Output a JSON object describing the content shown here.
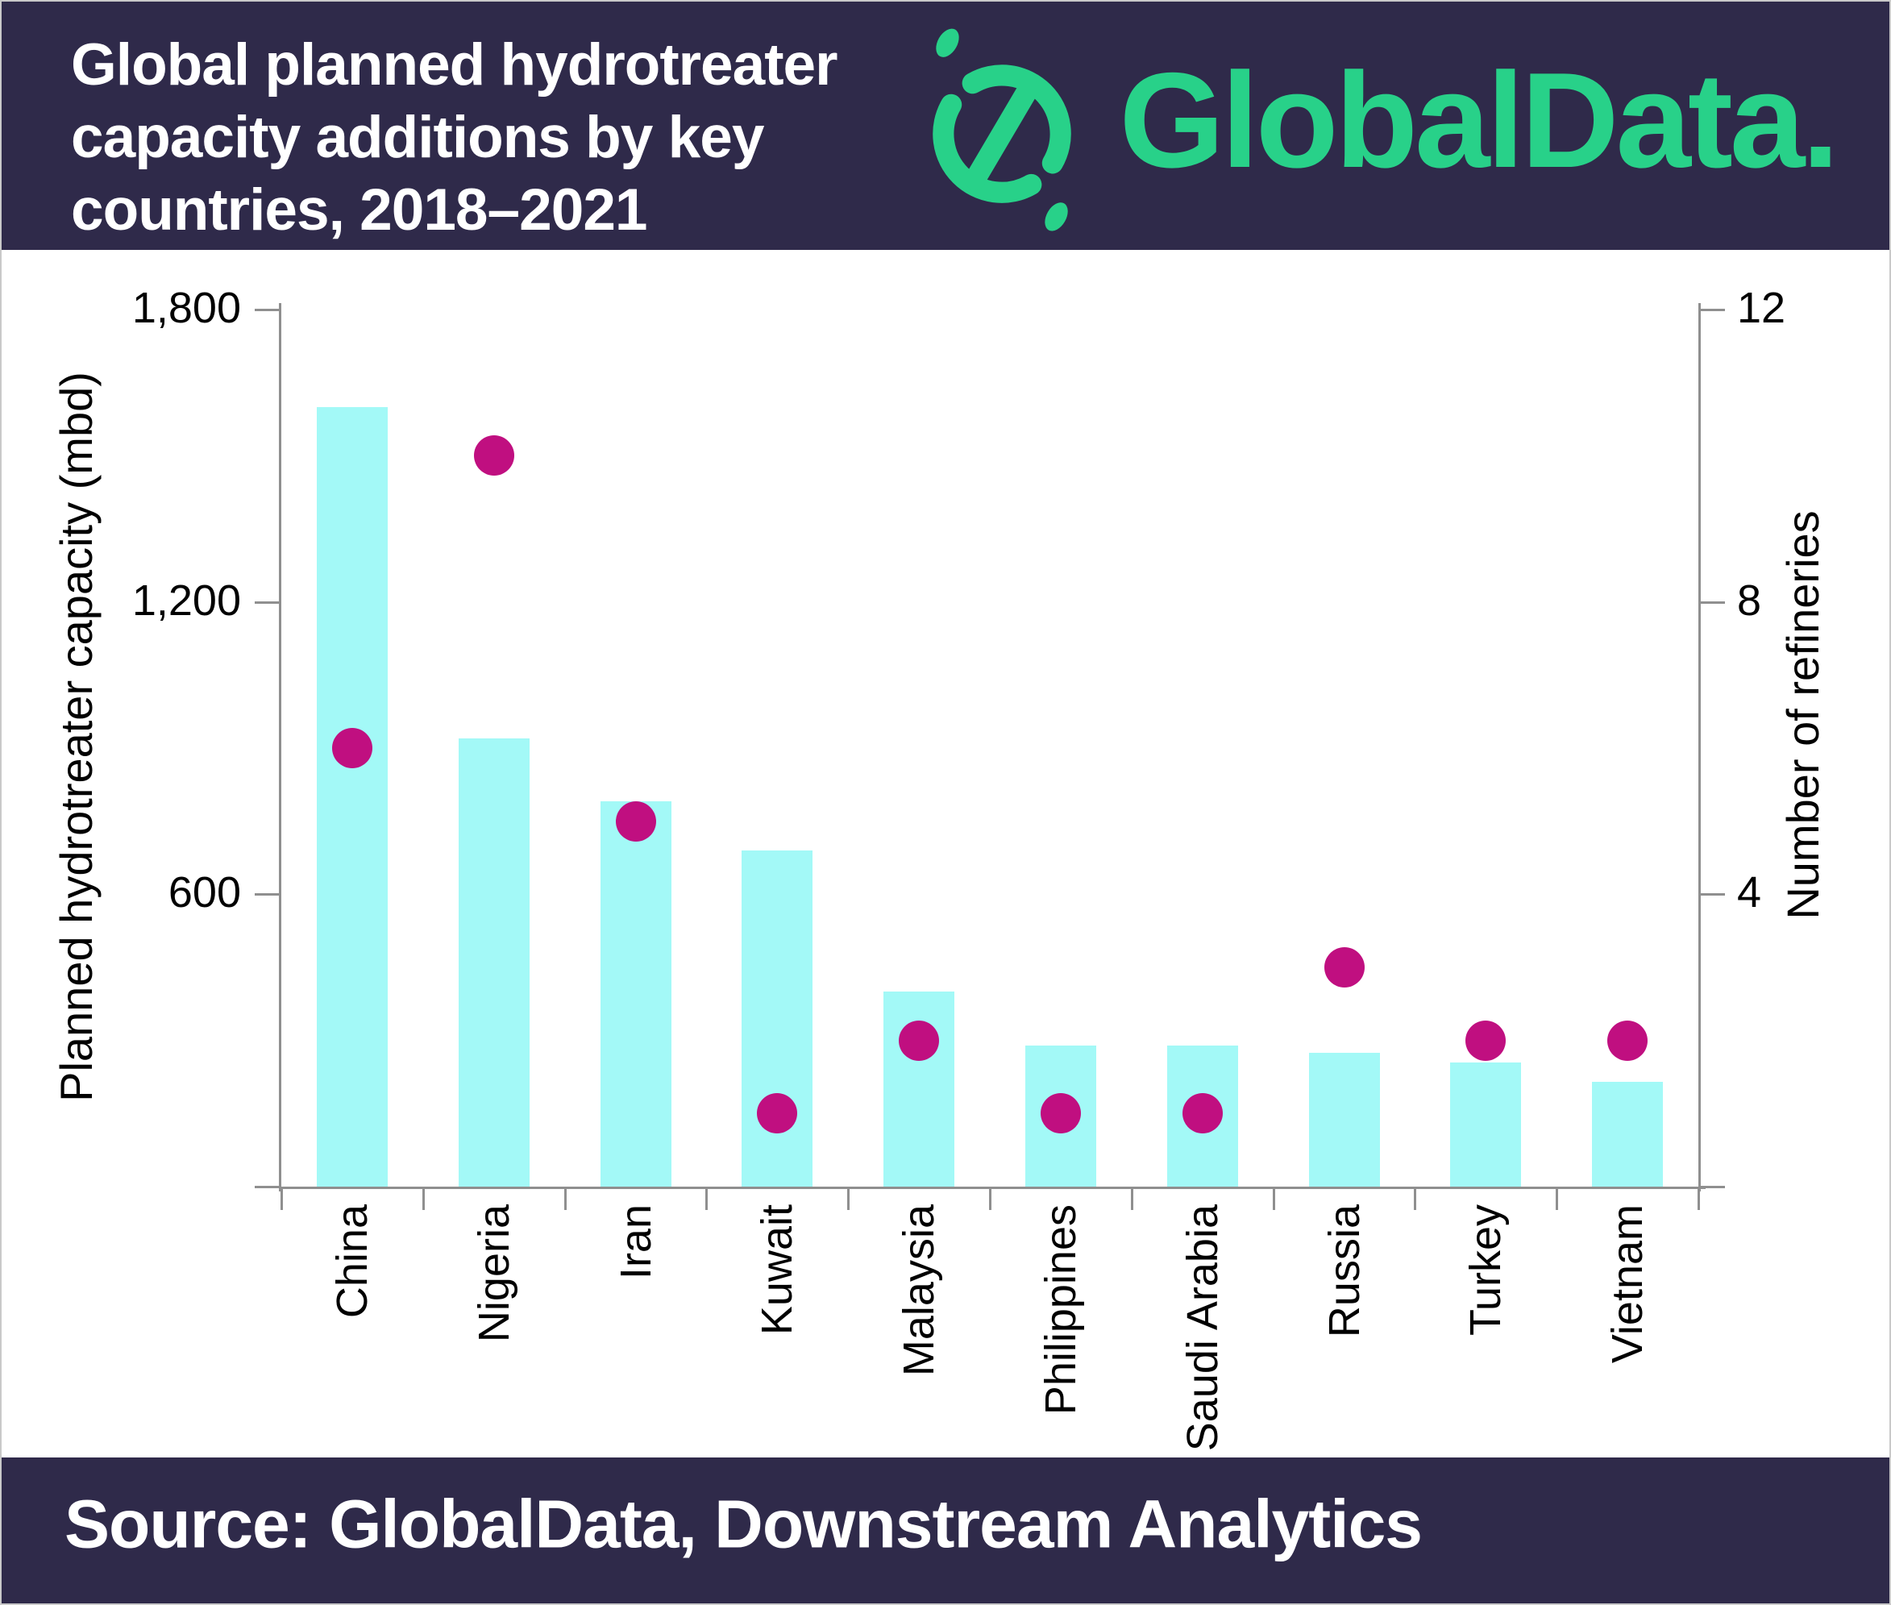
{
  "header": {
    "title_lines": [
      "Global planned hydrotreater",
      "capacity additions by key",
      "countries, 2018–2021"
    ],
    "brand": {
      "wordmark": "GlobalData."
    }
  },
  "footer": {
    "source_text": "Source: GlobalData, Downstream Analytics"
  },
  "colors": {
    "band_background": "#2f2a4a",
    "brand_green": "#28d189",
    "bar_cyan": "#a3f9f7",
    "dot_magenta": "#c00f80",
    "axis_gray": "#8f8f8f",
    "text_white": "#ffffff",
    "text_black": "#000000"
  },
  "chart_data": {
    "type": "bar",
    "subtype": "dual-axis bar with scatter overlay",
    "title": "Global planned hydrotreater capacity additions by key countries, 2018-2021",
    "categories": [
      "China",
      "Nigeria",
      "Iran",
      "Kuwait",
      "Malaysia",
      "Philippines",
      "Saudi Arabia",
      "Russia",
      "Turkey",
      "Vietnam"
    ],
    "series": [
      {
        "name": "Planned hydrotreater capacity (mbd)",
        "type": "bar",
        "axis": "left",
        "values": [
          1600,
          920,
          790,
          690,
          400,
          290,
          290,
          275,
          255,
          215
        ]
      },
      {
        "name": "Number of refineries",
        "type": "scatter",
        "axis": "right",
        "values": [
          6,
          10,
          5,
          1,
          2,
          1,
          1,
          3,
          2,
          2
        ]
      }
    ],
    "left_axis": {
      "label": "Planned hydrotreater capacity (mbd)",
      "min": 0,
      "max": 1800,
      "ticks": [
        {
          "value": 1800,
          "label": "1,800"
        },
        {
          "value": 1200,
          "label": "1,200"
        },
        {
          "value": 600,
          "label": "600"
        }
      ]
    },
    "right_axis": {
      "label": "Number of refineries",
      "min": 0,
      "max": 12,
      "ticks": [
        {
          "value": 12,
          "label": "12"
        },
        {
          "value": 8,
          "label": "8"
        },
        {
          "value": 4,
          "label": "4"
        }
      ]
    },
    "grid": false,
    "legend": "none"
  }
}
